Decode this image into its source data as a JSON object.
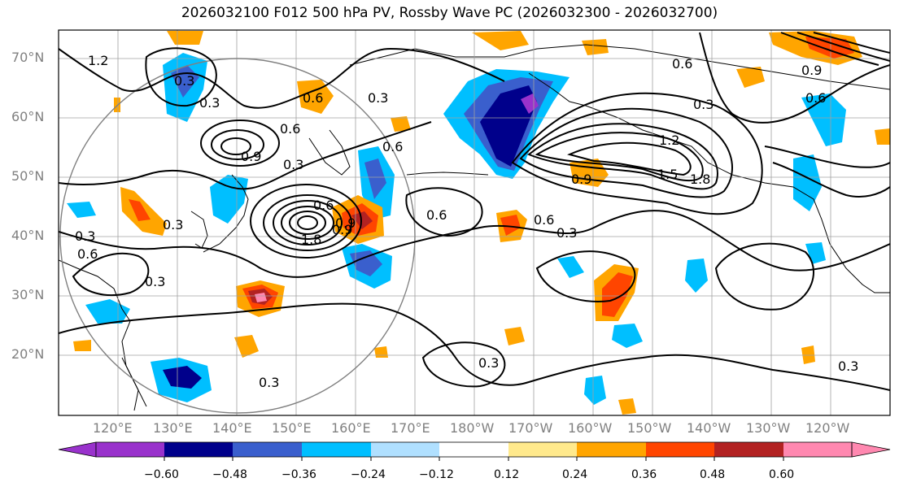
{
  "title": "2026032100 F012 500 hPa PV, Rossby Wave PC (2026032300 - 2026032700)",
  "map": {
    "lat_labels": [
      "70°N",
      "60°N",
      "50°N",
      "40°N",
      "30°N",
      "20°N"
    ],
    "lon_labels": [
      "120°E",
      "130°E",
      "140°E",
      "150°E",
      "160°E",
      "170°E",
      "180°W",
      "170°W",
      "160°W",
      "150°W",
      "140°W",
      "130°W",
      "120°W"
    ],
    "contour_labels": [
      {
        "text": "1.2"
      },
      {
        "text": "0.3"
      },
      {
        "text": "0.3"
      },
      {
        "text": "0.6"
      },
      {
        "text": "0.9"
      },
      {
        "text": "0.3"
      },
      {
        "text": "0.6"
      },
      {
        "text": "0.6"
      },
      {
        "text": "1.8"
      },
      {
        "text": "0.3"
      },
      {
        "text": "0.3"
      },
      {
        "text": "0.6"
      },
      {
        "text": "0.9"
      },
      {
        "text": "0.3"
      },
      {
        "text": "0.3"
      },
      {
        "text": "0.6"
      },
      {
        "text": "0.3"
      },
      {
        "text": "1.2"
      },
      {
        "text": "1.5"
      },
      {
        "text": "1.8"
      },
      {
        "text": "0.9"
      },
      {
        "text": "0.6"
      },
      {
        "text": "0.6"
      },
      {
        "text": "0.3"
      },
      {
        "text": "0.3"
      },
      {
        "text": "0.9"
      },
      {
        "text": "0.6"
      },
      {
        "text": "0.3"
      },
      {
        "text": "0.6"
      },
      {
        "text": "0.9"
      },
      {
        "text": "0.3"
      }
    ],
    "colors": {
      "grid": "#a0a0a0",
      "contour": "#000000",
      "coast": "#000000",
      "circle": "#808080"
    }
  },
  "colorbar": {
    "labels": [
      "−0.60",
      "−0.48",
      "−0.36",
      "−0.24",
      "−0.12",
      "0.12",
      "0.24",
      "0.36",
      "0.48",
      "0.60"
    ],
    "colors": [
      "#9932cc",
      "#00008b",
      "#3a5fcd",
      "#00bfff",
      "#b0e0ff",
      "#ffffff",
      "#ffe98c",
      "#ffa500",
      "#ff4500",
      "#b22222",
      "#ff88b0"
    ]
  }
}
